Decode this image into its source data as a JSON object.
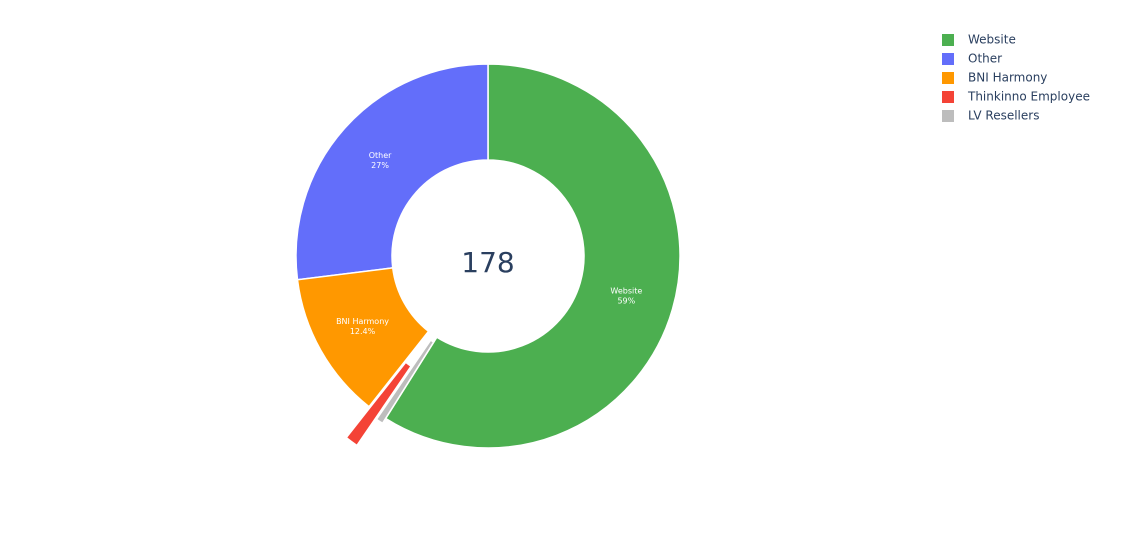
{
  "chart_data": {
    "type": "pie",
    "categories": [
      "Website",
      "Other",
      "BNI Harmony",
      "Thinkinno Employee",
      "LV Resellers"
    ],
    "values": [
      59,
      27,
      12.4,
      1.1,
      0.6
    ],
    "value_labels": [
      "59%",
      "27%",
      "12.4%",
      null,
      null
    ],
    "colors": [
      "#4caf50",
      "#636efa",
      "#ff9800",
      "#f44336",
      "#bdbdbd"
    ],
    "hole": 0.5,
    "pull": [
      0,
      0,
      0,
      0.2,
      0.03
    ],
    "direction": "counterclockwise",
    "center_text": "178",
    "legend": "top-right"
  }
}
